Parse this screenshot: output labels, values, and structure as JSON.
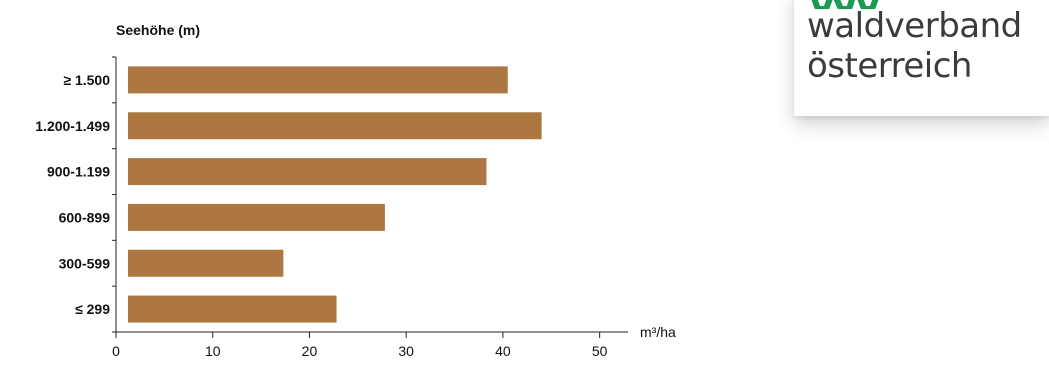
{
  "chart_data": {
    "type": "bar",
    "orientation": "horizontal",
    "title": "Seehöhe (m)",
    "xlabel": "",
    "ylabel": "",
    "unit_label": "m³/ha",
    "categories": [
      "≥ 1.500",
      "1.200-1.499",
      "900-1.199",
      "600-899",
      "300-599",
      "≤ 299"
    ],
    "values": [
      40.5,
      44,
      38.3,
      27.8,
      17.3,
      22.8
    ],
    "xlim": [
      0,
      52
    ],
    "xticks": [
      "0",
      "10",
      "20",
      "30",
      "40",
      "50"
    ],
    "bar_color": "#ad7741",
    "grid": false,
    "legend": "none"
  },
  "logo": {
    "line1": "waldverband",
    "line2": "österreich",
    "mark_color": "#1a9a52"
  }
}
